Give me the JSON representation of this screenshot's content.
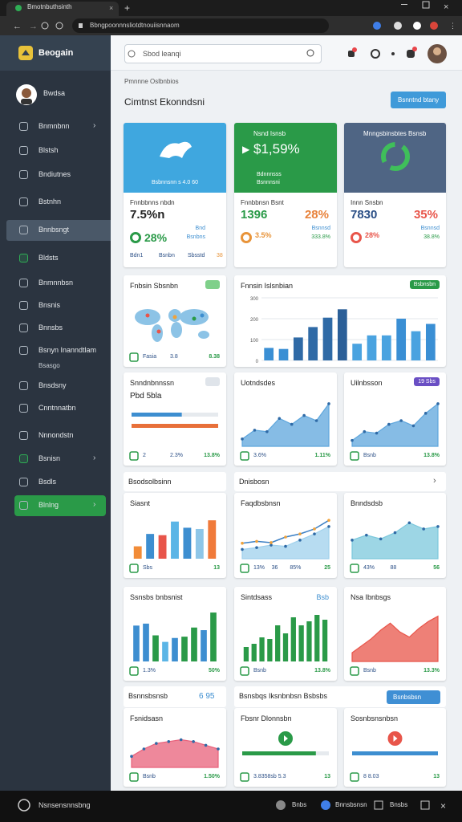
{
  "browser": {
    "tab_title": "Bmotnbuthsinth",
    "url": "Bbngpoonnnsliotdtnouiisnnaom"
  },
  "app": {
    "brand": "Beogain",
    "search_placeholder": "Sbod leanqi"
  },
  "sidebar": {
    "user": "Bwdsa",
    "items": [
      {
        "label": "Bnmnbnn",
        "chevron": true
      },
      {
        "label": "Blstsh"
      },
      {
        "label": "Bndiutnes"
      },
      {
        "label": "Bstnhn"
      },
      {
        "label": "Bnnbsngt",
        "highlight": "#4a5868"
      },
      {
        "label": "Bldsts",
        "icon_color": "#2fae55"
      },
      {
        "label": "Bnmnnbsn"
      },
      {
        "label": "Bnsnis"
      },
      {
        "label": "Bnnsbs"
      },
      {
        "label": "Bsnyn Inanndtlam",
        "sub": "Bsasgo"
      },
      {
        "label": "Bnsdsny"
      },
      {
        "label": "Cnntnnatbn"
      },
      {
        "label": "Nnnondstn"
      },
      {
        "label": "Bsnisn",
        "chevron": true,
        "icon_color": "#2fae55"
      },
      {
        "label": "Bsdls"
      },
      {
        "label": "Blnlng",
        "chevron": true,
        "highlight": "#2a9a48"
      }
    ]
  },
  "main": {
    "breadcrumb": "Pmnnne Oslbnbios",
    "title": "Cimtnst Ekonndsni",
    "button": "Bsnntnd btany"
  },
  "kpis": [
    {
      "banner_color": "#3fa7df",
      "banner_lines": [
        "Bsbnnsnn s 4.0 60"
      ],
      "label": "Fnnbbnns nbdn",
      "value": "7.5%n",
      "value_color": "#222",
      "detail": [
        "28%",
        "Bnd",
        "Bsnbns"
      ],
      "detail_color": "#2a9a48",
      "footer": [
        "Bdn1",
        "Bsnbn",
        "Sbsstd",
        "38"
      ]
    },
    {
      "banner_color": "#2a9a48",
      "banner_title": "Nsnd Isnsb",
      "banner_value": "$1,59%",
      "banner_lines": [
        "Bdnnnsss",
        "Bsnnnsni"
      ],
      "label": "Fnnbbnsn Bsnt",
      "value": "1396",
      "value_color": "#2a9a48",
      "change": "28%",
      "change_color": "#e8823a",
      "detail": [
        "3.5%",
        "Bsnnsd",
        "333.8%"
      ],
      "detail_color": "#e8943a"
    },
    {
      "banner_color": "#4f6584",
      "banner_title": "Mnngsbinsbtes Bsnsb",
      "label": "Innn Snsbn",
      "value": "7830",
      "value_color": "#2b4f86",
      "change": "35%",
      "change_color": "#e8554a",
      "detail": [
        "28%",
        "Bsnnsd",
        "38.8%"
      ],
      "detail_color": "#e8554a"
    }
  ],
  "section_1": {
    "left": "Bsodsolbsinn",
    "right": "Dnisbosn"
  },
  "section_2": {
    "left": "Bsnnsbsnsb",
    "left_note": "6 95",
    "right": "Bsnsbqs Iksnbnbsn Bsbsbs",
    "button": "Bsnbsbsn"
  },
  "cards": [
    {
      "title": "Fnbsin Sbsnbn",
      "badge": {
        "color": "#7fd08a"
      },
      "chart": {
        "type": "map"
      },
      "footer": [
        "Fasia",
        "3.8",
        "8.38"
      ]
    },
    {
      "title": "Fnnsin Islsnbian",
      "badge": {
        "text": "Bsbnsbn",
        "color": "#2a9a48"
      },
      "chart": {
        "type": "bar",
        "values": [
          60,
          55,
          110,
          160,
          205,
          245,
          80,
          120,
          120,
          200,
          140,
          175
        ],
        "colors": [
          "#3a8fd4",
          "#3a8fd4",
          "#2f6aa6",
          "#2f6aa6",
          "#2f6aa6",
          "#2b5f98",
          "#4aa3e0",
          "#4aa3e0",
          "#4aa3e0",
          "#3a8fd4",
          "#4aa3e0",
          "#3a8fd4"
        ],
        "ylim": [
          0,
          300
        ],
        "yticks": [
          0,
          100,
          200,
          300
        ]
      }
    },
    {
      "title": "Snndnbnnssn",
      "subtitle": "Pbd 5bla",
      "badge": {
        "color": "#dfe4ea"
      },
      "chart": {
        "type": "progress",
        "values": [
          58,
          100
        ],
        "colors": [
          "#3d8ed0",
          "#e8703a"
        ],
        "xlim": [
          0,
          100
        ]
      },
      "footer": [
        "2",
        "2.3%",
        "13.8%"
      ]
    },
    {
      "title": "Uotndsdes",
      "chart": {
        "type": "area",
        "ylim": [
          0,
          70
        ],
        "markers": true,
        "series": [
          {
            "values": [
              10,
              22,
              20,
              38,
              30,
              42,
              35,
              58
            ],
            "color": "#5ea6dc",
            "filled": true
          }
        ]
      },
      "footer": [
        "3.6%",
        "1.11%"
      ]
    },
    {
      "title": "Uilnbsson",
      "badge": {
        "text": "19 Sbs",
        "color": "#6a4fc4"
      },
      "chart": {
        "type": "area",
        "ylim": [
          0,
          70
        ],
        "markers": true,
        "series": [
          {
            "values": [
              8,
              20,
              18,
              30,
              35,
              28,
              45,
              58
            ],
            "color": "#5ea6dc",
            "filled": true
          }
        ]
      },
      "footer": [
        "Bsnb",
        "13.8%"
      ]
    },
    {
      "title": "Siasnt",
      "chart": {
        "type": "bar",
        "values": [
          20,
          40,
          38,
          60,
          50,
          48,
          62
        ],
        "colors": [
          "#f28c38",
          "#3d8ed0",
          "#e8554a",
          "#5bb5e6",
          "#3d8ed0",
          "#8ec6e8",
          "#f07a3a"
        ],
        "ylim": [
          0,
          70
        ]
      },
      "footer": [
        "Sbs",
        "13"
      ]
    },
    {
      "title": "Faqdbsbnsn",
      "chart": {
        "type": "area",
        "ylim": [
          0,
          70
        ],
        "markers": true,
        "series": [
          {
            "values": [
              15,
              18,
              22,
              20,
              30,
              40,
              52
            ],
            "color": "#9fd0ec",
            "filled": true
          },
          {
            "values": [
              25,
              28,
              26,
              35,
              40,
              48,
              62
            ],
            "color": "#3b7fc4"
          }
        ]
      },
      "footer": [
        "13%",
        "36",
        "85%",
        "25"
      ]
    },
    {
      "title": "Bnndsdsb",
      "chart": {
        "type": "area",
        "ylim": [
          0,
          70
        ],
        "markers": true,
        "series": [
          {
            "values": [
              30,
              38,
              32,
              42,
              58,
              48,
              52
            ],
            "color": "#7cc8dc",
            "filled": true
          }
        ]
      },
      "footer": [
        "43%",
        "88",
        "56"
      ]
    },
    {
      "title": "Ssnsbs bnbsnist",
      "chart": {
        "type": "bar",
        "values": [
          55,
          58,
          40,
          30,
          36,
          38,
          52,
          48,
          75
        ],
        "colors": [
          "#3d8ed0",
          "#3d8ed0",
          "#2a9a48",
          "#5bb5e6",
          "#3d8ed0",
          "#2a9a48",
          "#2a9a48",
          "#3d8ed0",
          "#2a9a48"
        ],
        "ylim": [
          0,
          80
        ]
      },
      "footer": [
        "1.3%",
        "50%"
      ]
    },
    {
      "title": "Sintdsass",
      "note": "Bsb",
      "chart": {
        "type": "bar",
        "values": [
          18,
          22,
          30,
          28,
          45,
          35,
          55,
          45,
          50,
          58,
          52
        ],
        "colors": [
          "#2a9a48"
        ],
        "ylim": [
          0,
          65
        ]
      },
      "footer": [
        "Bsnb",
        "13.8%"
      ]
    },
    {
      "title": "Nsa Ibnbsgs",
      "chart": {
        "type": "area",
        "ylim": [
          0,
          60
        ],
        "series": [
          {
            "values": [
              10,
              18,
              26,
              36,
              44,
              34,
              28,
              38,
              46,
              52
            ],
            "color": "#e8554a",
            "filled": true
          }
        ]
      },
      "footer": [
        "Bsnb",
        "13.3%"
      ]
    },
    {
      "title": "Fsnidsasn",
      "chart": {
        "type": "area",
        "ylim": [
          0,
          40
        ],
        "markers": true,
        "series": [
          {
            "values": [
              12,
              20,
              26,
              28,
              30,
              28,
              24,
              20
            ],
            "color": "#e8607a",
            "filled": true
          }
        ]
      },
      "footer": [
        "Bsnb",
        "1.50%"
      ]
    },
    {
      "title": "Fbsnr Dlonnsbn",
      "chart": {
        "type": "progress",
        "values": [
          85
        ],
        "colors": [
          "#2a9a48"
        ],
        "xlim": [
          0,
          100
        ],
        "icon_color": "#2a9a48"
      },
      "footer": [
        "3.8358sb 5.3",
        "13"
      ]
    },
    {
      "title": "Sosnbsnsnbsn",
      "chart": {
        "type": "progress",
        "values": [
          100
        ],
        "colors": [
          "#3d8ed0"
        ],
        "xlim": [
          0,
          100
        ],
        "icon_color": "#e8554a"
      },
      "footer": [
        "8 8.03",
        "13"
      ]
    }
  ],
  "taskbar": {
    "left": "Nsnsensnnsbng",
    "items": [
      "Bnbs",
      "Bnnsbsnsn",
      "Bnsbs"
    ]
  }
}
